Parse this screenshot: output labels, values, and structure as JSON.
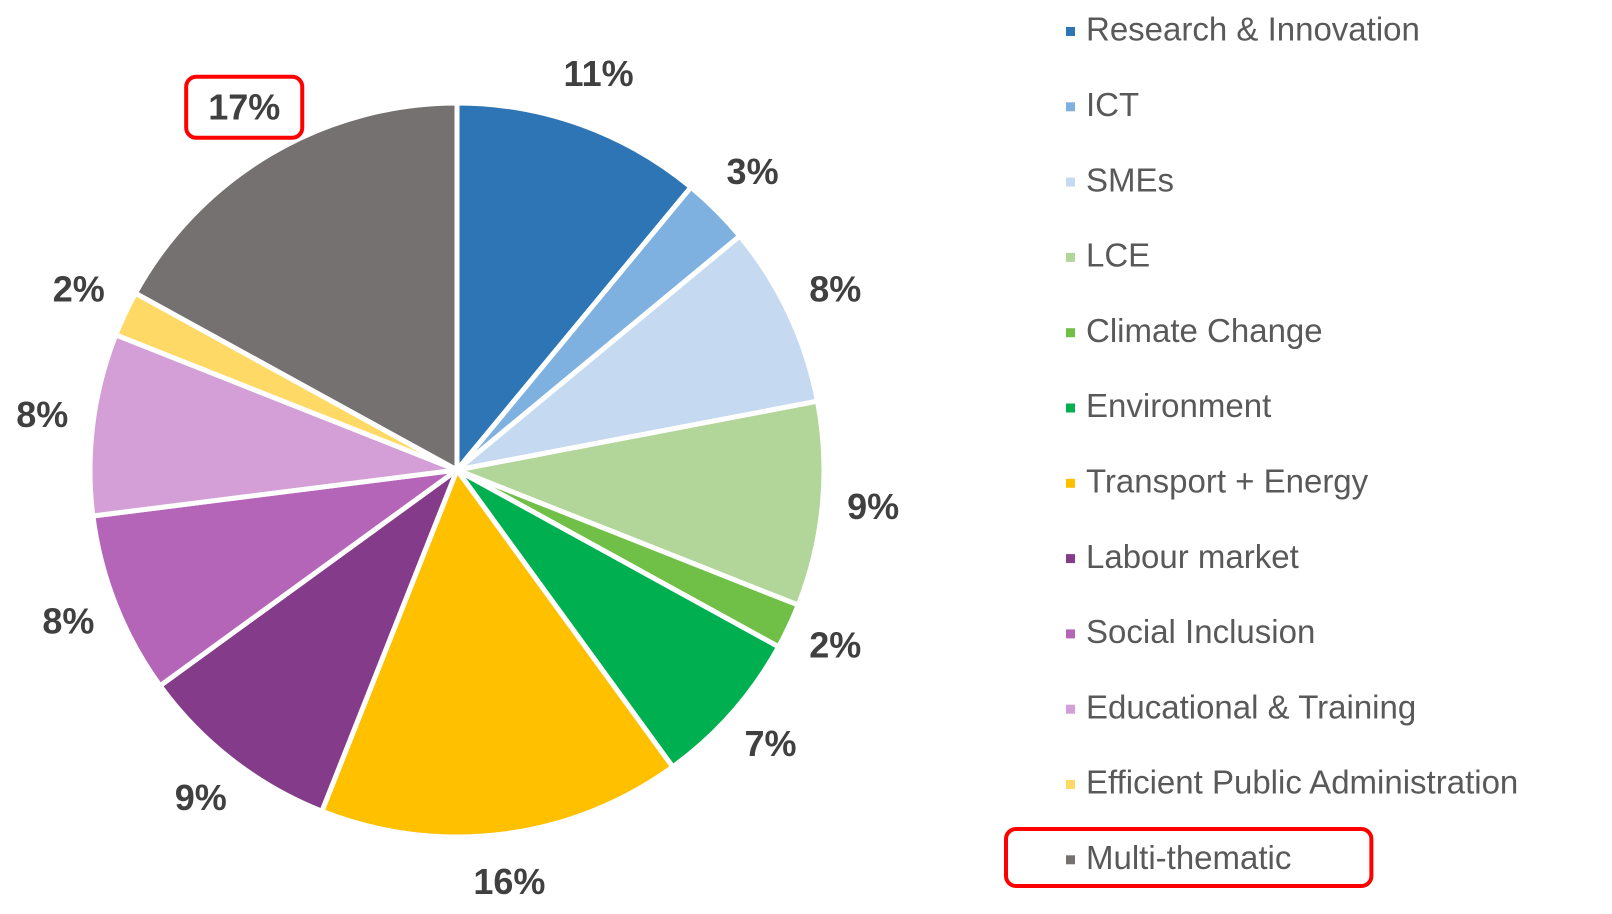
{
  "chart_data": {
    "type": "pie",
    "categories": [
      "Research & Innovation",
      "ICT",
      "SMEs",
      "LCE",
      "Climate Change",
      "Environment",
      "Transport + Energy",
      "Labour market",
      "Social Inclusion",
      "Educational & Training",
      "Efficient Public Administration",
      "Multi-thematic"
    ],
    "values": [
      11,
      3,
      8,
      9,
      2,
      7,
      16,
      9,
      8,
      8,
      2,
      17
    ],
    "value_labels": [
      "11%",
      "3%",
      "8%",
      "9%",
      "2%",
      "7%",
      "16%",
      "9%",
      "8%",
      "8%",
      "2%",
      "17%"
    ],
    "colors": [
      "#2e75b6",
      "#7eb0e0",
      "#c5daf0",
      "#b2d69a",
      "#70c048",
      "#00b050",
      "#ffc000",
      "#843c8a",
      "#b565b8",
      "#d39fd6",
      "#ffd966",
      "#767171"
    ],
    "legend": "right"
  }
}
